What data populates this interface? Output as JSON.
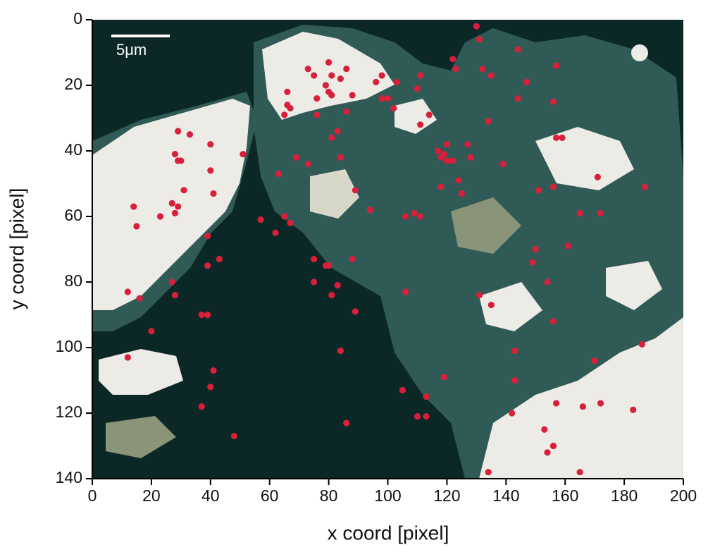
{
  "chart_data": {
    "type": "scatter",
    "xlabel": "x coord [pixel]",
    "ylabel": "y coord [pixel]",
    "annotation": "5μm",
    "xlim": [
      0,
      200
    ],
    "ylim": [
      140,
      0
    ],
    "xticks": [
      0,
      20,
      40,
      60,
      80,
      100,
      120,
      140,
      160,
      180,
      200
    ],
    "yticks": [
      0,
      20,
      40,
      60,
      80,
      100,
      120,
      140
    ],
    "color": "#d81f3c",
    "x": [
      130,
      131,
      144,
      122,
      80,
      73,
      86,
      123,
      132,
      157,
      75,
      81,
      84,
      98,
      111,
      135,
      79,
      96,
      103,
      110,
      147,
      66,
      80,
      88,
      76,
      81,
      98,
      100,
      144,
      156,
      66,
      67,
      65,
      76,
      86,
      102,
      114,
      134,
      111,
      29,
      33,
      83,
      81,
      157,
      159,
      120,
      40,
      117,
      127,
      28,
      30,
      29,
      51,
      69,
      84,
      119,
      118,
      120,
      128,
      122,
      40,
      73,
      139,
      63,
      124,
      171,
      31,
      41,
      89,
      118,
      125,
      151,
      156,
      187,
      14,
      29,
      23,
      27,
      65,
      57,
      94,
      106,
      109,
      111,
      165,
      172,
      15,
      28,
      67,
      62,
      39,
      150,
      161,
      43,
      75,
      149,
      39,
      79,
      80,
      88,
      27,
      83,
      154,
      75,
      12,
      28,
      16,
      81,
      106,
      131,
      135,
      37,
      39,
      89,
      156,
      20,
      186,
      84,
      143,
      12,
      170,
      41,
      143,
      40,
      105,
      113,
      110,
      113,
      119,
      37,
      48,
      86,
      157,
      166,
      172,
      183,
      142,
      153,
      156,
      154,
      134,
      165
    ],
    "y": [
      2,
      6,
      9,
      12,
      13,
      15,
      15,
      15,
      15,
      14,
      17,
      17,
      18,
      17,
      17,
      17,
      20,
      19,
      19,
      21,
      19,
      22,
      22,
      23,
      24,
      23,
      24,
      24,
      24,
      25,
      26,
      27,
      29,
      29,
      28,
      27,
      29,
      31,
      32,
      34,
      35,
      34,
      36,
      36,
      36,
      38,
      38,
      40,
      38,
      41,
      43,
      43,
      41,
      42,
      42,
      41,
      42,
      43,
      42,
      43,
      46,
      44,
      44,
      47,
      49,
      48,
      52,
      53,
      52,
      51,
      53,
      52,
      51,
      51,
      57,
      57,
      60,
      56,
      60,
      61,
      58,
      60,
      59,
      60,
      59,
      59,
      63,
      59,
      62,
      65,
      66,
      70,
      69,
      73,
      73,
      74,
      75,
      75,
      75,
      73,
      80,
      81,
      80,
      80,
      83,
      84,
      85,
      84,
      83,
      84,
      87,
      90,
      90,
      89,
      92,
      95,
      99,
      101,
      101,
      103,
      104,
      107,
      110,
      112,
      113,
      115,
      121,
      121,
      109,
      118,
      127,
      123,
      117,
      118,
      117,
      119,
      120,
      125,
      130,
      132,
      138,
      138
    ]
  }
}
